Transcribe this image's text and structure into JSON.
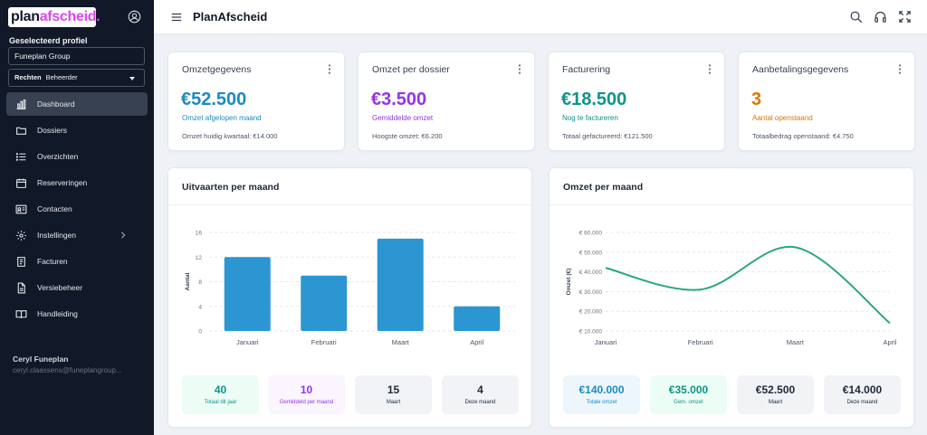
{
  "sidebar": {
    "logo_part1": "plan",
    "logo_part2": "afscheid.",
    "selected_profile_label": "Geselecteerd profiel",
    "organization": "Funeplan Group",
    "rights_label": "Rechten",
    "rights_value": "Beheerder",
    "items": [
      {
        "label": "Dashboard",
        "icon": "chart-bar-icon"
      },
      {
        "label": "Dossiers",
        "icon": "folder-icon"
      },
      {
        "label": "Overzichten",
        "icon": "list-icon"
      },
      {
        "label": "Reserveringen",
        "icon": "calendar-icon"
      },
      {
        "label": "Contacten",
        "icon": "contact-card-icon"
      },
      {
        "label": "Instellingen",
        "icon": "gear-icon"
      },
      {
        "label": "Facturen",
        "icon": "invoice-icon"
      },
      {
        "label": "Versiebeheer",
        "icon": "document-icon"
      },
      {
        "label": "Handleiding",
        "icon": "book-icon"
      }
    ],
    "user_name": "Ceryl Funeplan",
    "user_email": "ceryl.claassens@funeplangroup..."
  },
  "header": {
    "title": "PlanAfscheid"
  },
  "cards": [
    {
      "title": "Omzetgegevens",
      "value": "€52.500",
      "sub": "Omzet afgelopen maand",
      "foot": "Omzet huidig kwartaal:  €14.000",
      "color": "#1b8bc2"
    },
    {
      "title": "Omzet per dossier",
      "value": "€3.500",
      "sub": "Gemiddelde omzet",
      "foot": "Hoogste omzet:  €6.200",
      "color": "#9333ea"
    },
    {
      "title": "Facturering",
      "value": "€18.500",
      "sub": "Nog te factureren",
      "foot": "Totaal gefactureerd:  €121.500",
      "color": "#0e9488"
    },
    {
      "title": "Aanbetalingsgegevens",
      "value": "3",
      "sub": "Aantal openstaand",
      "foot": "Totaalbedrag openstaand:  €4.750",
      "color": "#d97706"
    }
  ],
  "funerals_chart": {
    "title": "Uitvaarten per maand",
    "tiles": [
      {
        "value": "40",
        "label": "Totaal dit jaar",
        "bg": "#ecfdf5",
        "color": "#0e9488"
      },
      {
        "value": "10",
        "label": "Gemiddeld per maand",
        "bg": "#faf5ff",
        "color": "#9333ea"
      },
      {
        "value": "15",
        "label": "Maart",
        "bg": "#f1f3f6",
        "color": "#1f2937"
      },
      {
        "value": "4",
        "label": "Deze maand",
        "bg": "#f1f3f6",
        "color": "#1f2937"
      }
    ]
  },
  "revenue_chart": {
    "title": "Omzet per maand",
    "tiles": [
      {
        "value": "€140.000",
        "label": "Totale omzet",
        "bg": "#eef6fd",
        "color": "#1b8bc2"
      },
      {
        "value": "€35.000",
        "label": "Gem. omzet",
        "bg": "#ecfdf5",
        "color": "#0e9488"
      },
      {
        "value": "€52.500",
        "label": "Maart",
        "bg": "#f1f3f6",
        "color": "#1f2937"
      },
      {
        "value": "€14.000",
        "label": "Deze maand",
        "bg": "#f1f3f6",
        "color": "#1f2937"
      }
    ]
  },
  "chart_data": [
    {
      "type": "bar",
      "title": "Uitvaarten per maand",
      "categories": [
        "Januari",
        "Februari",
        "Maart",
        "April"
      ],
      "values": [
        12,
        9,
        15,
        4
      ],
      "ylabel": "Aantal",
      "xlabel": "",
      "ylim": [
        0,
        16
      ],
      "yticks": [
        "0",
        "4",
        "8",
        "12",
        "16"
      ],
      "grid": true,
      "color": "#2b96d1"
    },
    {
      "type": "line",
      "title": "Omzet per maand",
      "categories": [
        "Januari",
        "Februari",
        "Maart",
        "April"
      ],
      "values": [
        42000,
        31000,
        52500,
        14000
      ],
      "ylabel": "Omzet (€)",
      "xlabel": "",
      "ylim": [
        10000,
        60000
      ],
      "yticks": [
        "€ 10.000",
        "€ 20.000",
        "€ 30.000",
        "€ 40.000",
        "€ 50.000",
        "€ 60.000"
      ],
      "grid": true,
      "color": "#2aa77a"
    }
  ]
}
